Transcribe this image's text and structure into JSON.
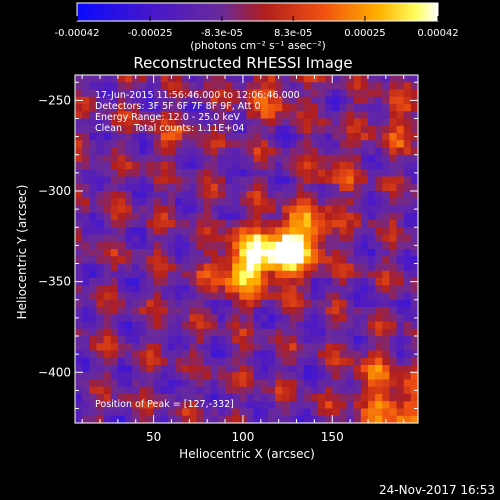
{
  "chart_data": {
    "type": "heatmap",
    "title": "Reconstructed RHESSI Image",
    "xlabel": "Heliocentric X (arcsec)",
    "ylabel": "Heliocentric Y (arcsec)",
    "xlim": [
      6,
      198
    ],
    "ylim": [
      -428,
      -236
    ],
    "x_ticks": [
      50,
      100,
      150
    ],
    "y_ticks": [
      -250,
      -300,
      -350,
      -400
    ],
    "colorbar": {
      "range": [
        -0.00042,
        0.00042
      ],
      "tick_values": [
        -0.00042,
        -0.00025,
        -8.3e-05,
        8.3e-05,
        0.00025,
        0.00042
      ],
      "tick_labels": [
        "-0.00042",
        "-0.00025",
        "-8.3e-05",
        "8.3e-05",
        "0.00025",
        "0.00042"
      ],
      "unit_label": "(photons cm⁻² s⁻¹ asec⁻²)",
      "colormap": [
        "#0000ff",
        "#5a16b6",
        "#6a2a9a",
        "#a8241a",
        "#e0501a",
        "#ffb400",
        "#ffff60",
        "#ffffff"
      ]
    },
    "annotations": [
      "17-Jun-2015 11:56:46.000 to 12:06:46.000",
      "Detectors: 3F 5F 6F 7F 8F 9F, Att 0",
      "Energy Range: 12.0 - 25.0 keV",
      "Clean    Total counts: 1.11E+04"
    ],
    "peak_label": "Position of Peak = [127,-332]",
    "peak": {
      "x": 127,
      "y": -332
    },
    "sources": [
      {
        "x": 127,
        "y": -332,
        "sigma": 10,
        "amp": 1.0
      },
      {
        "x": 108,
        "y": -336,
        "sigma": 12,
        "amp": 0.75
      },
      {
        "x": 96,
        "y": -345,
        "sigma": 10,
        "amp": 0.45
      },
      {
        "x": 140,
        "y": -318,
        "sigma": 9,
        "amp": 0.45
      },
      {
        "x": 188,
        "y": -420,
        "sigma": 14,
        "amp": 0.6
      },
      {
        "x": 170,
        "y": -400,
        "sigma": 8,
        "amp": 0.3
      },
      {
        "x": 115,
        "y": -246,
        "sigma": 12,
        "amp": 0.35
      },
      {
        "x": 60,
        "y": -270,
        "sigma": 8,
        "amp": 0.25
      },
      {
        "x": 185,
        "y": -262,
        "sigma": 12,
        "amp": 0.3
      },
      {
        "x": 150,
        "y": -290,
        "sigma": 10,
        "amp": 0.28
      }
    ]
  },
  "timestamp": "24-Nov-2017 16:53"
}
